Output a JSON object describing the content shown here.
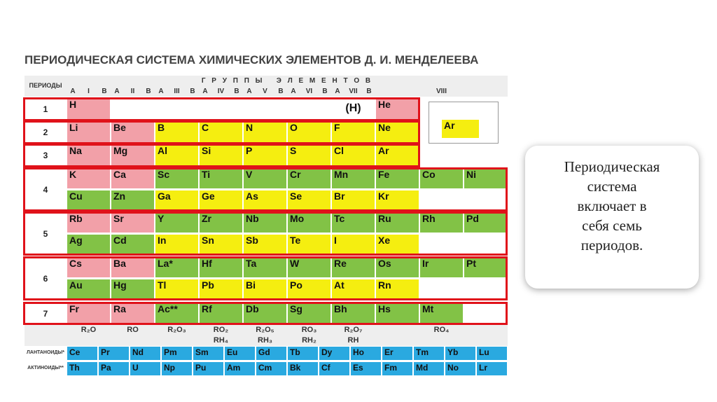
{
  "title": "ПЕРИОДИЧЕСКАЯ СИСТЕМА ХИМИЧЕСКИХ ЭЛЕМЕНТОВ Д. И. МЕНДЕЛЕЕВА",
  "header": {
    "periods_label": "ПЕРИОДЫ",
    "groups_label": "Г Р У П П Ы   Э Л Е М Е Н Т О В",
    "groups": [
      "I",
      "II",
      "III",
      "IV",
      "V",
      "VI",
      "VII",
      "VIII"
    ],
    "subgroups": [
      "A",
      "B"
    ]
  },
  "block_colors": {
    "s": "#f2a0a8",
    "p": "#f5ee10",
    "d": "#82c246",
    "f": "#2aa9e0"
  },
  "periods": [
    {
      "label": "1",
      "rows": [
        [
          {
            "symbol": "H",
            "block": "s"
          },
          null,
          null,
          null,
          null,
          null,
          {
            "symbol": "(H)",
            "block": "none"
          },
          {
            "symbol": "He",
            "block": "s"
          },
          null,
          null
        ]
      ]
    },
    {
      "label": "2",
      "rows": [
        [
          {
            "symbol": "Li",
            "block": "s"
          },
          {
            "symbol": "Be",
            "block": "s"
          },
          {
            "symbol": "B",
            "block": "p"
          },
          {
            "symbol": "C",
            "block": "p"
          },
          {
            "symbol": "N",
            "block": "p"
          },
          {
            "symbol": "O",
            "block": "p"
          },
          {
            "symbol": "F",
            "block": "p"
          },
          {
            "symbol": "Ne",
            "block": "p"
          },
          null,
          null
        ]
      ]
    },
    {
      "label": "3",
      "rows": [
        [
          {
            "symbol": "Na",
            "block": "s"
          },
          {
            "symbol": "Mg",
            "block": "s"
          },
          {
            "symbol": "Al",
            "block": "p"
          },
          {
            "symbol": "Si",
            "block": "p"
          },
          {
            "symbol": "P",
            "block": "p"
          },
          {
            "symbol": "S",
            "block": "p"
          },
          {
            "symbol": "Cl",
            "block": "p"
          },
          {
            "symbol": "Ar",
            "block": "p"
          },
          null,
          null
        ]
      ]
    },
    {
      "label": "4",
      "rows": [
        [
          {
            "symbol": "K",
            "block": "s"
          },
          {
            "symbol": "Ca",
            "block": "s"
          },
          {
            "symbol": "Sc",
            "block": "d"
          },
          {
            "symbol": "Ti",
            "block": "d"
          },
          {
            "symbol": "V",
            "block": "d"
          },
          {
            "symbol": "Cr",
            "block": "d"
          },
          {
            "symbol": "Mn",
            "block": "d"
          },
          {
            "symbol": "Fe",
            "block": "d"
          },
          {
            "symbol": "Co",
            "block": "d"
          },
          {
            "symbol": "Ni",
            "block": "d"
          }
        ],
        [
          {
            "symbol": "Cu",
            "block": "d"
          },
          {
            "symbol": "Zn",
            "block": "d"
          },
          {
            "symbol": "Ga",
            "block": "p"
          },
          {
            "symbol": "Ge",
            "block": "p"
          },
          {
            "symbol": "As",
            "block": "p"
          },
          {
            "symbol": "Se",
            "block": "p"
          },
          {
            "symbol": "Br",
            "block": "p"
          },
          {
            "symbol": "Kr",
            "block": "p"
          },
          null,
          null
        ]
      ]
    },
    {
      "label": "5",
      "rows": [
        [
          {
            "symbol": "Rb",
            "block": "s"
          },
          {
            "symbol": "Sr",
            "block": "s"
          },
          {
            "symbol": "Y",
            "block": "d"
          },
          {
            "symbol": "Zr",
            "block": "d"
          },
          {
            "symbol": "Nb",
            "block": "d"
          },
          {
            "symbol": "Mo",
            "block": "d"
          },
          {
            "symbol": "Tc",
            "block": "d"
          },
          {
            "symbol": "Ru",
            "block": "d"
          },
          {
            "symbol": "Rh",
            "block": "d"
          },
          {
            "symbol": "Pd",
            "block": "d"
          }
        ],
        [
          {
            "symbol": "Ag",
            "block": "d"
          },
          {
            "symbol": "Cd",
            "block": "d"
          },
          {
            "symbol": "In",
            "block": "p"
          },
          {
            "symbol": "Sn",
            "block": "p"
          },
          {
            "symbol": "Sb",
            "block": "p"
          },
          {
            "symbol": "Te",
            "block": "p"
          },
          {
            "symbol": "I",
            "block": "p"
          },
          {
            "symbol": "Xe",
            "block": "p"
          },
          null,
          null
        ]
      ]
    },
    {
      "label": "6",
      "rows": [
        [
          {
            "symbol": "Cs",
            "block": "s"
          },
          {
            "symbol": "Ba",
            "block": "s"
          },
          {
            "symbol": "La*",
            "block": "d"
          },
          {
            "symbol": "Hf",
            "block": "d"
          },
          {
            "symbol": "Ta",
            "block": "d"
          },
          {
            "symbol": "W",
            "block": "d"
          },
          {
            "symbol": "Re",
            "block": "d"
          },
          {
            "symbol": "Os",
            "block": "d"
          },
          {
            "symbol": "Ir",
            "block": "d"
          },
          {
            "symbol": "Pt",
            "block": "d"
          }
        ],
        [
          {
            "symbol": "Au",
            "block": "d"
          },
          {
            "symbol": "Hg",
            "block": "d"
          },
          {
            "symbol": "Tl",
            "block": "p"
          },
          {
            "symbol": "Pb",
            "block": "p"
          },
          {
            "symbol": "Bi",
            "block": "p"
          },
          {
            "symbol": "Po",
            "block": "p"
          },
          {
            "symbol": "At",
            "block": "p"
          },
          {
            "symbol": "Rn",
            "block": "p"
          },
          null,
          null
        ]
      ]
    },
    {
      "label": "7",
      "rows": [
        [
          {
            "symbol": "Fr",
            "block": "s"
          },
          {
            "symbol": "Ra",
            "block": "s"
          },
          {
            "symbol": "Ac**",
            "block": "d"
          },
          {
            "symbol": "Rf",
            "block": "d"
          },
          {
            "symbol": "Db",
            "block": "d"
          },
          {
            "symbol": "Sg",
            "block": "d"
          },
          {
            "symbol": "Bh",
            "block": "d"
          },
          {
            "symbol": "Hs",
            "block": "d"
          },
          {
            "symbol": "Mt",
            "block": "d"
          },
          null
        ]
      ]
    }
  ],
  "oxides": [
    "R₂O",
    "RO",
    "R₂O₃",
    "RO₂",
    "R₂O₅",
    "RO₃",
    "R₂O₇",
    "RO₄"
  ],
  "hydrides": [
    "RH₄",
    "RH₃",
    "RH₂",
    "RH"
  ],
  "lanthanides": {
    "label": "ЛАНТАНОИДЫ*",
    "symbols": [
      "Ce",
      "Pr",
      "Nd",
      "Pm",
      "Sm",
      "Eu",
      "Gd",
      "Tb",
      "Dy",
      "Ho",
      "Er",
      "Tm",
      "Yb",
      "Lu"
    ]
  },
  "actinides": {
    "label": "АКТИНОИДЫ**",
    "symbols": [
      "Th",
      "Pa",
      "U",
      "Np",
      "Pu",
      "Am",
      "Cm",
      "Bk",
      "Cf",
      "Es",
      "Fm",
      "Md",
      "No",
      "Lr"
    ]
  },
  "legend_sample": "Ar",
  "callout": {
    "lines": [
      "Периодическая",
      "система",
      "включает в",
      "себя семь",
      "периодов."
    ]
  }
}
